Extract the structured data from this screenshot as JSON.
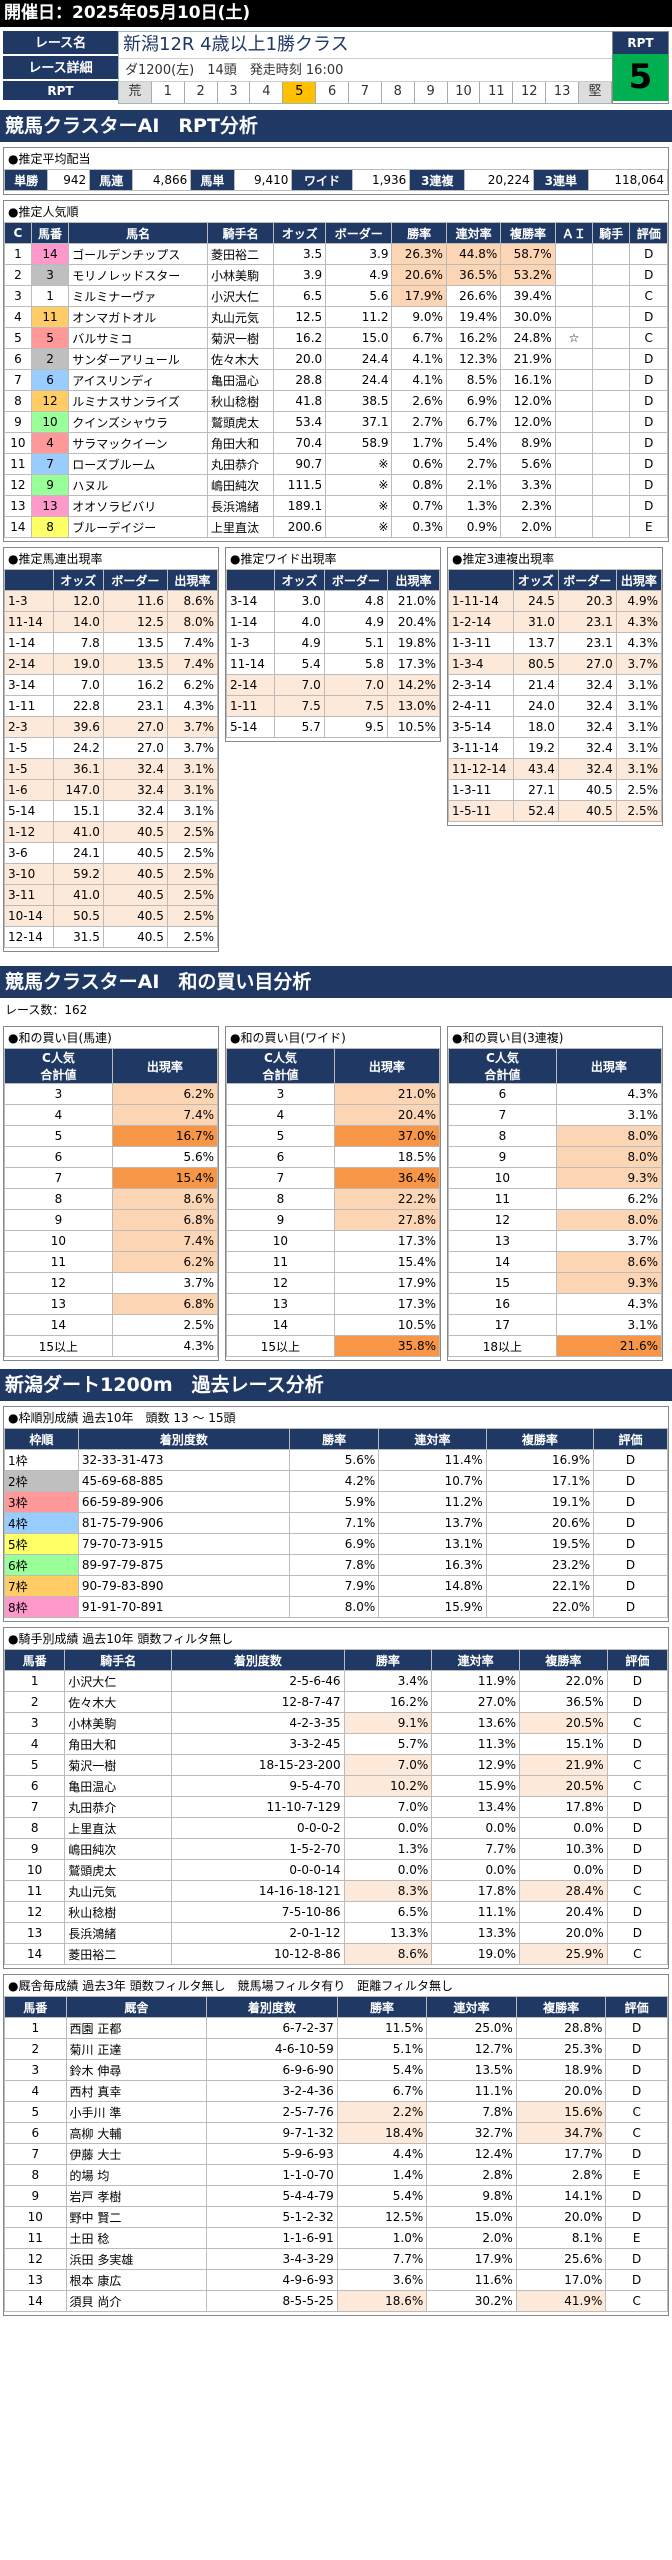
{
  "header": {
    "date": "開催日：2025年05月10日(土)"
  },
  "race": {
    "labels": {
      "name": "レース名",
      "detail": "レース詳細",
      "rpt": "RPT"
    },
    "title": "新潟12R 4歳以上1勝クラス",
    "detail": "ダ1200(左)　14頭　発走時刻 16:00",
    "scale": [
      "荒",
      "1",
      "2",
      "3",
      "4",
      "5",
      "6",
      "7",
      "8",
      "9",
      "10",
      "11",
      "12",
      "13",
      "堅"
    ],
    "rpt_label": "RPT",
    "rpt_value": "5"
  },
  "sec1": {
    "title": "競馬クラスターAI　RPT分析"
  },
  "payout": {
    "title": "●推定平均配当",
    "items": [
      [
        "単勝",
        "942"
      ],
      [
        "馬連",
        "4,866"
      ],
      [
        "馬単",
        "9,410"
      ],
      [
        "ワイド",
        "1,936"
      ],
      [
        "3連複",
        "20,224"
      ],
      [
        "3連単",
        "118,064"
      ]
    ]
  },
  "popularity": {
    "title": "●推定人気順",
    "headers": [
      "C",
      "馬番",
      "馬名",
      "騎手名",
      "オッズ",
      "ボーダー",
      "勝率",
      "連対率",
      "複勝率",
      "ＡＩ",
      "騎手",
      "評価"
    ],
    "rows": [
      [
        "1",
        "14",
        "ゴールデンチップス",
        "菱田裕二",
        "3.5",
        "3.9",
        "26.3%",
        "44.8%",
        "58.7%",
        "",
        "",
        "D"
      ],
      [
        "2",
        "3",
        "モリノレッドスター",
        "小林美駒",
        "3.9",
        "4.9",
        "20.6%",
        "36.5%",
        "53.2%",
        "",
        "",
        "D"
      ],
      [
        "3",
        "1",
        "ミルミナーヴァ",
        "小沢大仁",
        "6.5",
        "5.6",
        "17.9%",
        "26.6%",
        "39.4%",
        "",
        "",
        "C"
      ],
      [
        "4",
        "11",
        "オンマガトオル",
        "丸山元気",
        "12.5",
        "11.2",
        "9.0%",
        "19.4%",
        "30.0%",
        "",
        "",
        "D"
      ],
      [
        "5",
        "5",
        "バルサミコ",
        "菊沢一樹",
        "16.2",
        "15.0",
        "6.7%",
        "16.2%",
        "24.8%",
        "☆",
        "",
        "C"
      ],
      [
        "6",
        "2",
        "サンダーアリュール",
        "佐々木大",
        "20.0",
        "24.4",
        "4.1%",
        "12.3%",
        "21.9%",
        "",
        "",
        "D"
      ],
      [
        "7",
        "6",
        "アイスリンディ",
        "亀田温心",
        "28.8",
        "24.4",
        "4.1%",
        "8.5%",
        "16.1%",
        "",
        "",
        "D"
      ],
      [
        "8",
        "12",
        "ルミナスサンライズ",
        "秋山稔樹",
        "41.8",
        "38.5",
        "2.6%",
        "6.9%",
        "12.0%",
        "",
        "",
        "D"
      ],
      [
        "9",
        "10",
        "クインズシャウラ",
        "鷲頭虎太",
        "53.4",
        "37.1",
        "2.7%",
        "6.7%",
        "12.0%",
        "",
        "",
        "D"
      ],
      [
        "10",
        "4",
        "サラマックイーン",
        "角田大和",
        "70.4",
        "58.9",
        "1.7%",
        "5.4%",
        "8.9%",
        "",
        "",
        "D"
      ],
      [
        "11",
        "7",
        "ローズブルーム",
        "丸田恭介",
        "90.7",
        "※",
        "0.6%",
        "2.7%",
        "5.6%",
        "",
        "",
        "D"
      ],
      [
        "12",
        "9",
        "ハヌル",
        "嶋田純次",
        "111.5",
        "※",
        "0.8%",
        "2.1%",
        "3.3%",
        "",
        "",
        "D"
      ],
      [
        "13",
        "13",
        "オオソラビバリ",
        "長浜鴻緒",
        "189.1",
        "※",
        "0.7%",
        "1.3%",
        "2.3%",
        "",
        "",
        "D"
      ],
      [
        "14",
        "8",
        "ブルーデイジー",
        "上里直汰",
        "200.6",
        "※",
        "0.3%",
        "0.9%",
        "2.0%",
        "",
        "",
        "E"
      ]
    ]
  },
  "umaren": {
    "title": "●推定馬連出現率",
    "headers": [
      "",
      "オッズ",
      "ボーダー",
      "出現率"
    ],
    "rows": [
      [
        "1-3",
        "12.0",
        "11.6",
        "8.6%"
      ],
      [
        "11-14",
        "14.0",
        "12.5",
        "8.0%"
      ],
      [
        "1-14",
        "7.8",
        "13.5",
        "7.4%"
      ],
      [
        "2-14",
        "19.0",
        "13.5",
        "7.4%"
      ],
      [
        "3-14",
        "7.0",
        "16.2",
        "6.2%"
      ],
      [
        "1-11",
        "22.8",
        "23.1",
        "4.3%"
      ],
      [
        "2-3",
        "39.6",
        "27.0",
        "3.7%"
      ],
      [
        "1-5",
        "24.2",
        "27.0",
        "3.7%"
      ],
      [
        "1-5",
        "36.1",
        "32.4",
        "3.1%"
      ],
      [
        "1-6",
        "147.0",
        "32.4",
        "3.1%"
      ],
      [
        "5-14",
        "15.1",
        "32.4",
        "3.1%"
      ],
      [
        "1-12",
        "41.0",
        "40.5",
        "2.5%"
      ],
      [
        "3-6",
        "24.1",
        "40.5",
        "2.5%"
      ],
      [
        "3-10",
        "59.2",
        "40.5",
        "2.5%"
      ],
      [
        "3-11",
        "41.0",
        "40.5",
        "2.5%"
      ],
      [
        "10-14",
        "50.5",
        "40.5",
        "2.5%"
      ],
      [
        "12-14",
        "31.5",
        "40.5",
        "2.5%"
      ]
    ]
  },
  "wide": {
    "title": "●推定ワイド出現率",
    "headers": [
      "",
      "オッズ",
      "ボーダー",
      "出現率"
    ],
    "rows": [
      [
        "3-14",
        "3.0",
        "4.8",
        "21.0%"
      ],
      [
        "1-14",
        "4.0",
        "4.9",
        "20.4%"
      ],
      [
        "1-3",
        "4.9",
        "5.1",
        "19.8%"
      ],
      [
        "11-14",
        "5.4",
        "5.8",
        "17.3%"
      ],
      [
        "2-14",
        "7.0",
        "7.0",
        "14.2%"
      ],
      [
        "1-11",
        "7.5",
        "7.5",
        "13.0%"
      ],
      [
        "5-14",
        "5.7",
        "9.5",
        "10.5%"
      ]
    ]
  },
  "sanrenpuku": {
    "title": "●推定3連複出現率",
    "headers": [
      "",
      "オッズ",
      "ボーダー",
      "出現率"
    ],
    "rows": [
      [
        "1-11-14",
        "24.5",
        "20.3",
        "4.9%"
      ],
      [
        "1-2-14",
        "31.0",
        "23.1",
        "4.3%"
      ],
      [
        "1-3-11",
        "13.7",
        "23.1",
        "4.3%"
      ],
      [
        "1-3-4",
        "80.5",
        "27.0",
        "3.7%"
      ],
      [
        "2-3-14",
        "21.4",
        "32.4",
        "3.1%"
      ],
      [
        "2-4-11",
        "24.0",
        "32.4",
        "3.1%"
      ],
      [
        "3-5-14",
        "18.0",
        "32.4",
        "3.1%"
      ],
      [
        "3-11-14",
        "19.2",
        "32.4",
        "3.1%"
      ],
      [
        "11-12-14",
        "43.4",
        "32.4",
        "3.1%"
      ],
      [
        "1-3-11",
        "27.1",
        "40.5",
        "2.5%"
      ],
      [
        "1-5-11",
        "52.4",
        "40.5",
        "2.5%"
      ]
    ]
  },
  "sec2": {
    "title": "競馬クラスターAI　和の買い目分析",
    "count": "レース数：162"
  },
  "wa_umaren": {
    "title": "●和の買い目(馬連)",
    "h1": "C人気",
    "h2": "合計値",
    "h3": "出現率",
    "rows": [
      [
        "3",
        "6.2%"
      ],
      [
        "4",
        "7.4%"
      ],
      [
        "5",
        "16.7%"
      ],
      [
        "6",
        "5.6%"
      ],
      [
        "7",
        "15.4%"
      ],
      [
        "8",
        "8.6%"
      ],
      [
        "9",
        "6.8%"
      ],
      [
        "10",
        "7.4%"
      ],
      [
        "11",
        "6.2%"
      ],
      [
        "12",
        "3.7%"
      ],
      [
        "13",
        "6.8%"
      ],
      [
        "14",
        "2.5%"
      ],
      [
        "15以上",
        "4.3%"
      ]
    ]
  },
  "wa_wide": {
    "title": "●和の買い目(ワイド)",
    "h1": "C人気",
    "h2": "合計値",
    "h3": "出現率",
    "rows": [
      [
        "3",
        "21.0%"
      ],
      [
        "4",
        "20.4%"
      ],
      [
        "5",
        "37.0%"
      ],
      [
        "6",
        "18.5%"
      ],
      [
        "7",
        "36.4%"
      ],
      [
        "8",
        "22.2%"
      ],
      [
        "9",
        "27.8%"
      ],
      [
        "10",
        "17.3%"
      ],
      [
        "11",
        "15.4%"
      ],
      [
        "12",
        "17.9%"
      ],
      [
        "13",
        "17.3%"
      ],
      [
        "14",
        "10.5%"
      ],
      [
        "15以上",
        "35.8%"
      ]
    ]
  },
  "wa_3puku": {
    "title": "●和の買い目(3連複)",
    "h1": "C人気",
    "h2": "合計値",
    "h3": "出現率",
    "rows": [
      [
        "6",
        "4.3%"
      ],
      [
        "7",
        "3.1%"
      ],
      [
        "8",
        "8.0%"
      ],
      [
        "9",
        "8.0%"
      ],
      [
        "10",
        "9.3%"
      ],
      [
        "11",
        "6.2%"
      ],
      [
        "12",
        "8.0%"
      ],
      [
        "13",
        "3.7%"
      ],
      [
        "14",
        "8.6%"
      ],
      [
        "15",
        "9.3%"
      ],
      [
        "16",
        "4.3%"
      ],
      [
        "17",
        "3.1%"
      ],
      [
        "18以上",
        "21.6%"
      ]
    ]
  },
  "sec3": {
    "title": "新潟ダート1200m　過去レース分析"
  },
  "waku": {
    "title": "●枠順別成績 過去10年　頭数 13 ～ 15頭",
    "headers": [
      "枠順",
      "着別度数",
      "勝率",
      "連対率",
      "複勝率",
      "評価"
    ],
    "rows": [
      [
        "1枠",
        "32-33-31-473",
        "5.6%",
        "11.4%",
        "16.9%",
        "D"
      ],
      [
        "2枠",
        "45-69-68-885",
        "4.2%",
        "10.7%",
        "17.1%",
        "D"
      ],
      [
        "3枠",
        "66-59-89-906",
        "5.9%",
        "11.2%",
        "19.1%",
        "D"
      ],
      [
        "4枠",
        "81-75-79-906",
        "7.1%",
        "13.7%",
        "20.6%",
        "D"
      ],
      [
        "5枠",
        "79-70-73-915",
        "6.9%",
        "13.1%",
        "19.5%",
        "D"
      ],
      [
        "6枠",
        "89-97-79-875",
        "7.8%",
        "16.3%",
        "23.2%",
        "D"
      ],
      [
        "7枠",
        "90-79-83-890",
        "7.9%",
        "14.8%",
        "22.1%",
        "D"
      ],
      [
        "8枠",
        "91-91-70-891",
        "8.0%",
        "15.9%",
        "22.0%",
        "D"
      ]
    ]
  },
  "jockey": {
    "title": "●騎手別成績 過去10年 頭数フィルタ無し",
    "headers": [
      "馬番",
      "騎手名",
      "着別度数",
      "勝率",
      "連対率",
      "複勝率",
      "評価"
    ],
    "rows": [
      [
        "1",
        "小沢大仁",
        "2-5-6-46",
        "3.4%",
        "11.9%",
        "22.0%",
        "D"
      ],
      [
        "2",
        "佐々木大",
        "12-8-7-47",
        "16.2%",
        "27.0%",
        "36.5%",
        "D"
      ],
      [
        "3",
        "小林美駒",
        "4-2-3-35",
        "9.1%",
        "13.6%",
        "20.5%",
        "C"
      ],
      [
        "4",
        "角田大和",
        "3-3-2-45",
        "5.7%",
        "11.3%",
        "15.1%",
        "D"
      ],
      [
        "5",
        "菊沢一樹",
        "18-15-23-200",
        "7.0%",
        "12.9%",
        "21.9%",
        "C"
      ],
      [
        "6",
        "亀田温心",
        "9-5-4-70",
        "10.2%",
        "15.9%",
        "20.5%",
        "C"
      ],
      [
        "7",
        "丸田恭介",
        "11-10-7-129",
        "7.0%",
        "13.4%",
        "17.8%",
        "D"
      ],
      [
        "8",
        "上里直汰",
        "0-0-0-2",
        "0.0%",
        "0.0%",
        "0.0%",
        "D"
      ],
      [
        "9",
        "嶋田純次",
        "1-5-2-70",
        "1.3%",
        "7.7%",
        "10.3%",
        "D"
      ],
      [
        "10",
        "鷲頭虎太",
        "0-0-0-14",
        "0.0%",
        "0.0%",
        "0.0%",
        "D"
      ],
      [
        "11",
        "丸山元気",
        "14-16-18-121",
        "8.3%",
        "17.8%",
        "28.4%",
        "C"
      ],
      [
        "12",
        "秋山稔樹",
        "7-5-10-86",
        "6.5%",
        "11.1%",
        "20.4%",
        "D"
      ],
      [
        "13",
        "長浜鴻緒",
        "2-0-1-12",
        "13.3%",
        "13.3%",
        "20.0%",
        "D"
      ],
      [
        "14",
        "菱田裕二",
        "10-12-8-86",
        "8.6%",
        "19.0%",
        "25.9%",
        "C"
      ]
    ]
  },
  "trainer": {
    "title": "●厩舎毎成績 過去3年 頭数フィルタ無し　競馬場フィルタ有り　距離フィルタ無し",
    "headers": [
      "馬番",
      "厩舎",
      "着別度数",
      "勝率",
      "連対率",
      "複勝率",
      "評価"
    ],
    "rows": [
      [
        "1",
        "西園 正都",
        "6-7-2-37",
        "11.5%",
        "25.0%",
        "28.8%",
        "D"
      ],
      [
        "2",
        "菊川 正達",
        "4-6-10-59",
        "5.1%",
        "12.7%",
        "25.3%",
        "D"
      ],
      [
        "3",
        "鈴木 伸尋",
        "6-9-6-90",
        "5.4%",
        "13.5%",
        "18.9%",
        "D"
      ],
      [
        "4",
        "西村 真幸",
        "3-2-4-36",
        "6.7%",
        "11.1%",
        "20.0%",
        "D"
      ],
      [
        "5",
        "小手川 準",
        "2-5-7-76",
        "2.2%",
        "7.8%",
        "15.6%",
        "C"
      ],
      [
        "6",
        "高柳 大輔",
        "9-7-1-32",
        "18.4%",
        "32.7%",
        "34.7%",
        "C"
      ],
      [
        "7",
        "伊藤 大士",
        "5-9-6-93",
        "4.4%",
        "12.4%",
        "17.7%",
        "D"
      ],
      [
        "8",
        "的場 均",
        "1-1-0-70",
        "1.4%",
        "2.8%",
        "2.8%",
        "E"
      ],
      [
        "9",
        "岩戸 孝樹",
        "5-4-4-79",
        "5.4%",
        "9.8%",
        "14.1%",
        "D"
      ],
      [
        "10",
        "野中 賢二",
        "5-1-2-32",
        "12.5%",
        "15.0%",
        "20.0%",
        "D"
      ],
      [
        "11",
        "土田 稔",
        "1-1-6-91",
        "1.0%",
        "2.0%",
        "8.1%",
        "E"
      ],
      [
        "12",
        "浜田 多実雄",
        "3-4-3-29",
        "7.7%",
        "17.9%",
        "25.6%",
        "D"
      ],
      [
        "13",
        "根本 康広",
        "4-9-6-93",
        "3.6%",
        "11.6%",
        "17.0%",
        "D"
      ],
      [
        "14",
        "須貝 尚介",
        "8-5-5-25",
        "18.6%",
        "30.2%",
        "41.9%",
        "C"
      ]
    ]
  }
}
